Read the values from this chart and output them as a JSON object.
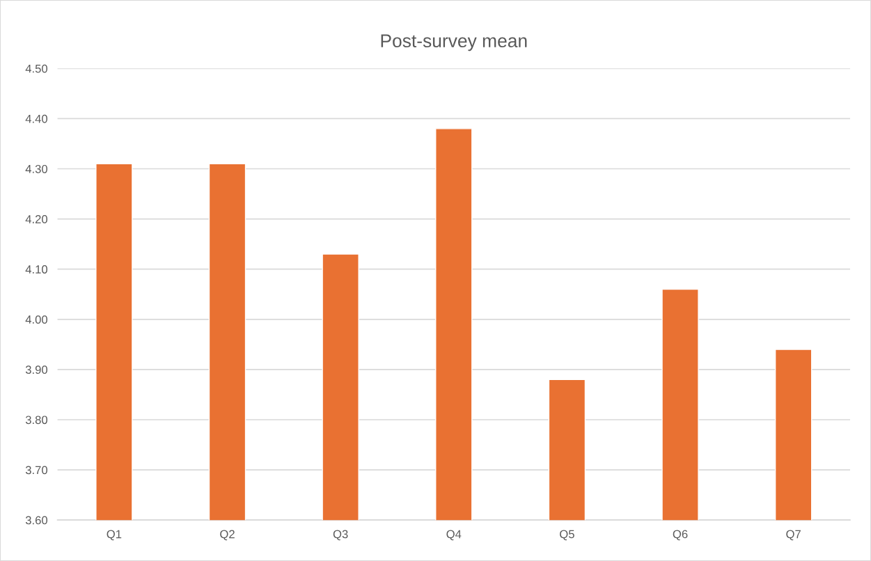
{
  "chart_data": {
    "type": "bar",
    "title": "Post-survey mean",
    "categories": [
      "Q1",
      "Q2",
      "Q3",
      "Q4",
      "Q5",
      "Q6",
      "Q7"
    ],
    "values": [
      4.31,
      4.31,
      4.13,
      4.38,
      3.88,
      4.06,
      3.94
    ],
    "color": "#e97132",
    "ylim": [
      3.6,
      4.5
    ],
    "yticks": [
      {
        "value": 3.6,
        "label": "3.60"
      },
      {
        "value": 3.7,
        "label": "3.70"
      },
      {
        "value": 3.8,
        "label": "3.80"
      },
      {
        "value": 3.9,
        "label": "3.90"
      },
      {
        "value": 4.0,
        "label": "4.00"
      },
      {
        "value": 4.1,
        "label": "4.10"
      },
      {
        "value": 4.2,
        "label": "4.20"
      },
      {
        "value": 4.3,
        "label": "4.30"
      },
      {
        "value": 4.4,
        "label": "4.40"
      },
      {
        "value": 4.5,
        "label": "4.50"
      }
    ],
    "grid": "y"
  }
}
